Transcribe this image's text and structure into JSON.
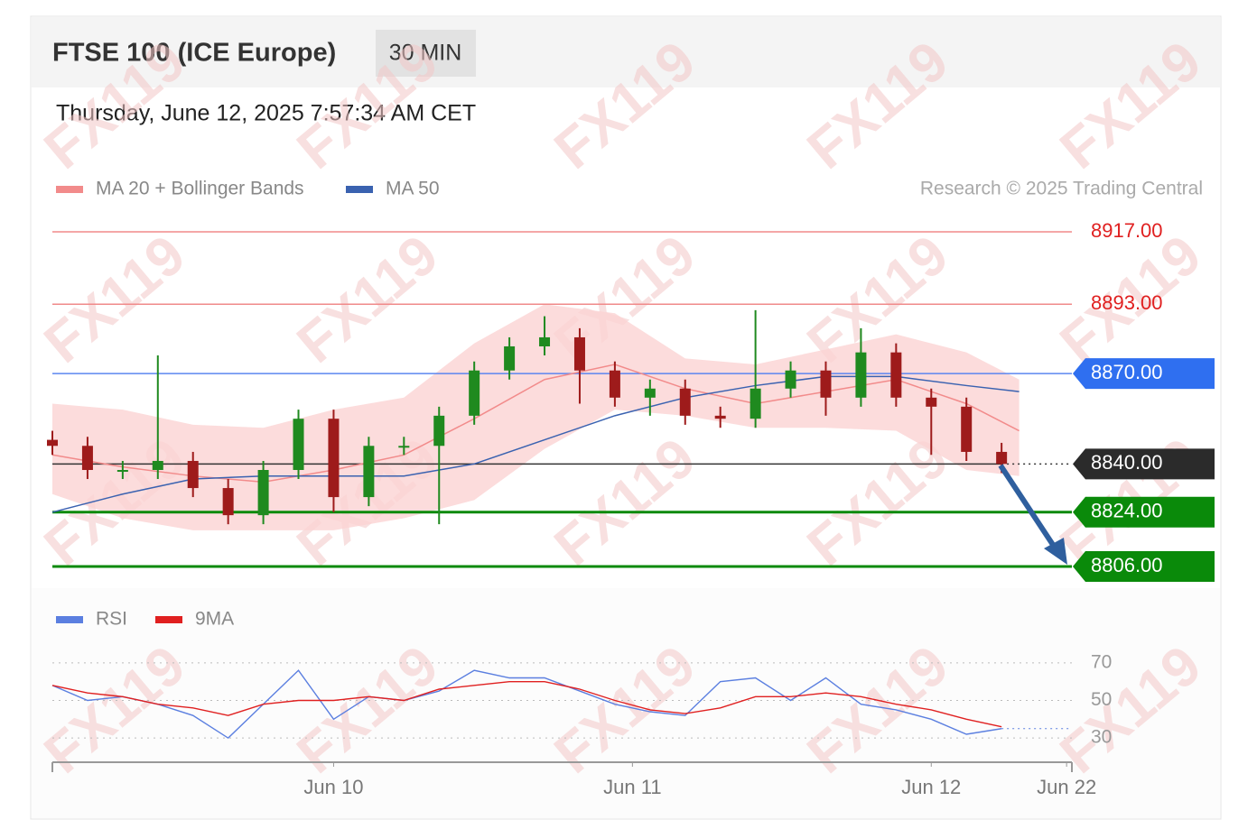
{
  "chart_data": [
    {
      "type": "candlestick",
      "title": "FTSE 100 (ICE Europe)",
      "timeframe": "30 MIN",
      "timestamp": "Thursday, June 12, 2025 7:57:34 AM CET",
      "credit": "Research © 2025 Trading Central",
      "watermark": "FX119",
      "up_color": "#1f8a1f",
      "down_color": "#9e1b1b",
      "x": [
        0,
        2,
        4,
        6,
        8,
        10,
        12,
        14,
        16,
        18,
        20,
        22,
        24,
        26,
        28,
        30,
        32,
        34,
        36,
        38,
        40,
        42,
        44,
        46,
        48,
        50,
        52,
        54
      ],
      "open": [
        8848,
        8846,
        8838,
        8838,
        8841,
        8832,
        8823,
        8838,
        8855,
        8829,
        8846,
        8846,
        8856,
        8871,
        8879,
        8882,
        8871,
        8862,
        8865,
        8856,
        8855,
        8865,
        8871,
        8862,
        8877,
        8862,
        8859,
        8844
      ],
      "high": [
        8851,
        8849,
        8841,
        8876,
        8844,
        8835,
        8841,
        8858,
        8858,
        8849,
        8849,
        8859,
        8874,
        8882,
        8889,
        8885,
        8874,
        8868,
        8868,
        8859,
        8891,
        8874,
        8874,
        8885,
        8880,
        8865,
        8862,
        8847
      ],
      "low": [
        8843,
        8835,
        8835,
        8835,
        8829,
        8820,
        8820,
        8835,
        8824,
        8826,
        8843,
        8820,
        8853,
        8868,
        8876,
        8860,
        8859,
        8856,
        8853,
        8852,
        8852,
        8862,
        8856,
        8859,
        8859,
        8843,
        8841,
        8837
      ],
      "close": [
        8846,
        8838,
        8838,
        8841,
        8832,
        8823,
        8838,
        8855,
        8829,
        8846,
        8846,
        8856,
        8871,
        8879,
        8882,
        8871,
        8862,
        8865,
        8856,
        8855,
        8865,
        8871,
        8862,
        8877,
        8862,
        8859,
        8844,
        8840
      ],
      "overlays": [
        {
          "name": "MA 20 + Bollinger Bands",
          "color": "#f28b8b",
          "band_color": "#fbd3d3",
          "x": [
            0,
            4,
            8,
            12,
            16,
            20,
            24,
            28,
            32,
            36,
            40,
            44,
            48,
            52,
            55
          ],
          "values": [
            8843,
            8839,
            8836,
            8834,
            8838,
            8843,
            8855,
            8868,
            8873,
            8865,
            8860,
            8864,
            8868,
            8860,
            8851
          ],
          "upper": [
            8860,
            8858,
            8853,
            8852,
            8858,
            8862,
            8880,
            8893,
            8890,
            8875,
            8873,
            8878,
            8883,
            8877,
            8868
          ],
          "lower": [
            8830,
            8822,
            8818,
            8818,
            8818,
            8822,
            8828,
            8845,
            8858,
            8856,
            8852,
            8852,
            8851,
            8838,
            8836
          ]
        },
        {
          "name": "MA 50",
          "color": "#3a62b0",
          "x": [
            0,
            4,
            8,
            12,
            16,
            20,
            24,
            28,
            32,
            36,
            40,
            44,
            48,
            52,
            55
          ],
          "values": [
            8824,
            8830,
            8835,
            8836,
            8836,
            8836,
            8840,
            8848,
            8856,
            8862,
            8866,
            8869,
            8869,
            8866,
            8864
          ]
        }
      ],
      "levels": [
        {
          "value": 8917,
          "label": "8917.00",
          "color": "#f08a8a",
          "text_color": "#e02020",
          "style": "text"
        },
        {
          "value": 8893,
          "label": "8893.00",
          "color": "#f08a8a",
          "text_color": "#e02020",
          "style": "text"
        },
        {
          "value": 8870,
          "label": "8870.00",
          "color": "#5b86f0",
          "text_color": "#ffffff",
          "box_color": "#2f6ff0",
          "style": "box"
        },
        {
          "value": 8840,
          "label": "8840.00",
          "color": "#333333",
          "text_color": "#ffffff",
          "box_color": "#2b2b2b",
          "style": "dotted"
        },
        {
          "value": 8824,
          "label": "8824.00",
          "color": "#0a8a0a",
          "text_color": "#ffffff",
          "box_color": "#0a8a0a",
          "style": "box"
        },
        {
          "value": 8806,
          "label": "8806.00",
          "color": "#0a8a0a",
          "text_color": "#ffffff",
          "box_color": "#0a8a0a",
          "style": "box"
        }
      ],
      "xlim": [
        0,
        58
      ],
      "ylim": [
        8800,
        8924
      ]
    },
    {
      "type": "line",
      "series": [
        {
          "name": "RSI",
          "color": "#5b7fe0",
          "x": [
            0,
            2,
            4,
            6,
            8,
            10,
            12,
            14,
            16,
            18,
            20,
            22,
            24,
            26,
            28,
            30,
            32,
            34,
            36,
            38,
            40,
            42,
            44,
            46,
            48,
            50,
            52,
            54
          ],
          "values": [
            58,
            50,
            52,
            48,
            42,
            30,
            48,
            66,
            40,
            52,
            50,
            55,
            66,
            62,
            62,
            55,
            48,
            44,
            42,
            60,
            62,
            50,
            62,
            48,
            45,
            40,
            32,
            35
          ]
        },
        {
          "name": "9MA",
          "color": "#e02020",
          "x": [
            0,
            2,
            4,
            6,
            8,
            10,
            12,
            14,
            16,
            18,
            20,
            22,
            24,
            26,
            28,
            30,
            32,
            34,
            36,
            38,
            40,
            42,
            44,
            46,
            48,
            50,
            52,
            54
          ],
          "values": [
            58,
            54,
            52,
            48,
            46,
            42,
            48,
            50,
            50,
            52,
            50,
            56,
            58,
            60,
            60,
            56,
            50,
            45,
            43,
            46,
            52,
            52,
            54,
            52,
            48,
            45,
            40,
            36
          ]
        }
      ],
      "xlim": [
        0,
        58
      ],
      "xticks": [
        {
          "value": 16,
          "label": "Jun 10"
        },
        {
          "value": 33,
          "label": "Jun 11"
        },
        {
          "value": 50,
          "label": "Jun 12"
        },
        {
          "value": 57.7,
          "label": "Jun 22"
        }
      ],
      "ylim": [
        20,
        80
      ],
      "yticks": [
        70,
        50,
        30
      ],
      "grid": true
    }
  ]
}
